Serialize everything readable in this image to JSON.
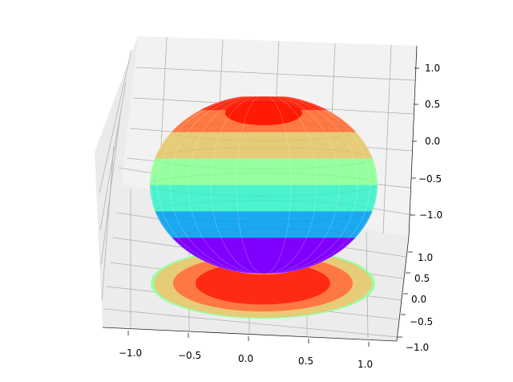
{
  "chart_data": {
    "type": "surface3d",
    "title": "",
    "xlabel": "",
    "ylabel": "",
    "zlabel": "",
    "xlim": [
      -1.25,
      1.25
    ],
    "ylim": [
      -1.2,
      1.2
    ],
    "zlim": [
      -1.2,
      1.2
    ],
    "x_ticks": [
      "−1.0",
      "−0.5",
      "0.0",
      "0.5",
      "1.0"
    ],
    "y_ticks": [
      "−1.0",
      "−0.5",
      "0.0",
      "0.5",
      "1.0"
    ],
    "z_ticks": [
      "−1.0",
      "−0.5",
      "0.0",
      "0.5",
      "1.0"
    ],
    "grid": true,
    "colormap": "rainbow",
    "surface": {
      "shape": "unit sphere",
      "center": [
        0,
        0,
        0
      ],
      "radius": 1.0
    },
    "filled_contour_projection": {
      "plane": "z = -1.2",
      "bands": [
        {
          "z_max": -0.6,
          "color": "#8000ff"
        },
        {
          "z_max": -0.3,
          "color": "#1aa8f0"
        },
        {
          "z_max": 0.0,
          "color": "#4cf2ce"
        },
        {
          "z_max": 0.3,
          "color": "#96ffa0"
        },
        {
          "z_max": 0.6,
          "color": "#e6cb78"
        },
        {
          "z_max": 0.85,
          "color": "#ff7844"
        },
        {
          "z_max": 1.0,
          "color": "#ff2a14"
        }
      ]
    }
  }
}
